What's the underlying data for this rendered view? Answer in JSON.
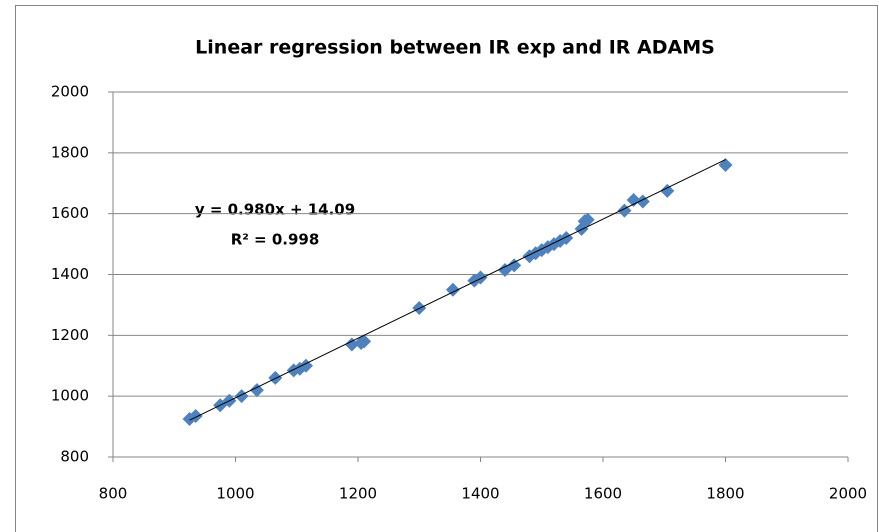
{
  "chart_data": {
    "type": "scatter",
    "title": "Linear regression between IR exp and IR ADAMS",
    "series": [
      {
        "color": "#4f81bd",
        "x": [
          925,
          935,
          975,
          990,
          1010,
          1035,
          1065,
          1095,
          1105,
          1115,
          1190,
          1205,
          1210,
          1300,
          1355,
          1390,
          1400,
          1440,
          1455,
          1480,
          1490,
          1500,
          1510,
          1520,
          1530,
          1540,
          1565,
          1570,
          1575,
          1635,
          1650,
          1665,
          1705,
          1800
        ],
        "values": [
          925,
          935,
          970,
          985,
          1000,
          1020,
          1060,
          1085,
          1090,
          1100,
          1170,
          1175,
          1180,
          1290,
          1350,
          1380,
          1390,
          1415,
          1430,
          1460,
          1470,
          1480,
          1490,
          1500,
          1510,
          1520,
          1550,
          1575,
          1580,
          1610,
          1645,
          1640,
          1675,
          1760
        ]
      }
    ],
    "trendline": {
      "color": "#000000",
      "label": "y = 0.980x  + 14.09",
      "r2_label": "R² = 0.998",
      "x": [
        925,
        1800
      ],
      "values": [
        921,
        1778
      ]
    },
    "xlim": [
      800,
      2000
    ],
    "xticks": [
      800,
      1000,
      1200,
      1400,
      1600,
      1800,
      2000
    ],
    "ylim": [
      800,
      2000
    ],
    "yticks": [
      800,
      1000,
      1200,
      1400,
      1600,
      1800,
      2000
    ],
    "grid": true
  }
}
